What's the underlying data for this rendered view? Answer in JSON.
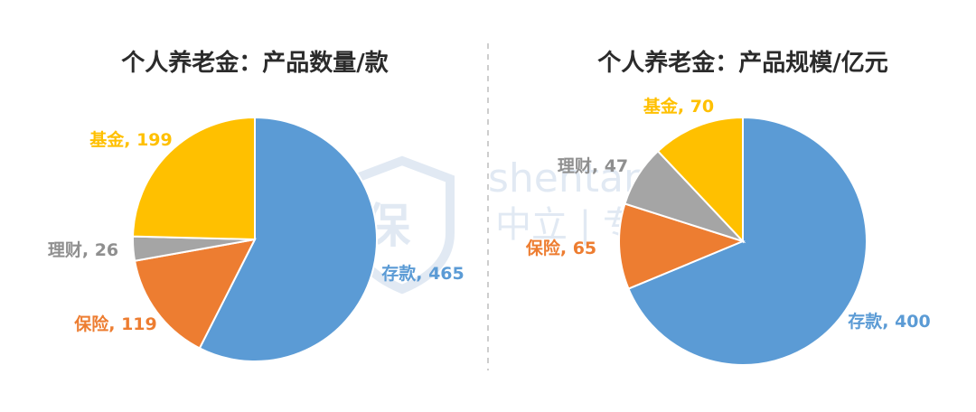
{
  "chart_data": [
    {
      "type": "pie",
      "title": "个人养老金：产品数量/款",
      "slices": [
        {
          "name": "存款",
          "value": 465,
          "label": "存款, 465",
          "color": "#5b9bd5"
        },
        {
          "name": "保险",
          "value": 119,
          "label": "保险, 119",
          "color": "#ed7d31"
        },
        {
          "name": "理财",
          "value": 26,
          "label": "理财, 26",
          "color": "#a5a5a5"
        },
        {
          "name": "基金",
          "value": 199,
          "label": "基金, 199",
          "color": "#ffc000"
        }
      ]
    },
    {
      "type": "pie",
      "title": "个人养老金：产品规模/亿元",
      "slices": [
        {
          "name": "存款",
          "value": 400,
          "label": "存款, 400",
          "color": "#5b9bd5"
        },
        {
          "name": "保险",
          "value": 65,
          "label": "保险, 65",
          "color": "#ed7d31"
        },
        {
          "name": "理财",
          "value": 47,
          "label": "理财, 47",
          "color": "#a5a5a5"
        },
        {
          "name": "基金",
          "value": 70,
          "label": "基金, 70",
          "color": "#ffc000"
        }
      ]
    }
  ],
  "watermark": {
    "site": "shentanbao.com",
    "brand": "蓝保",
    "slogan": "中立 | 专业 | 诚信"
  }
}
